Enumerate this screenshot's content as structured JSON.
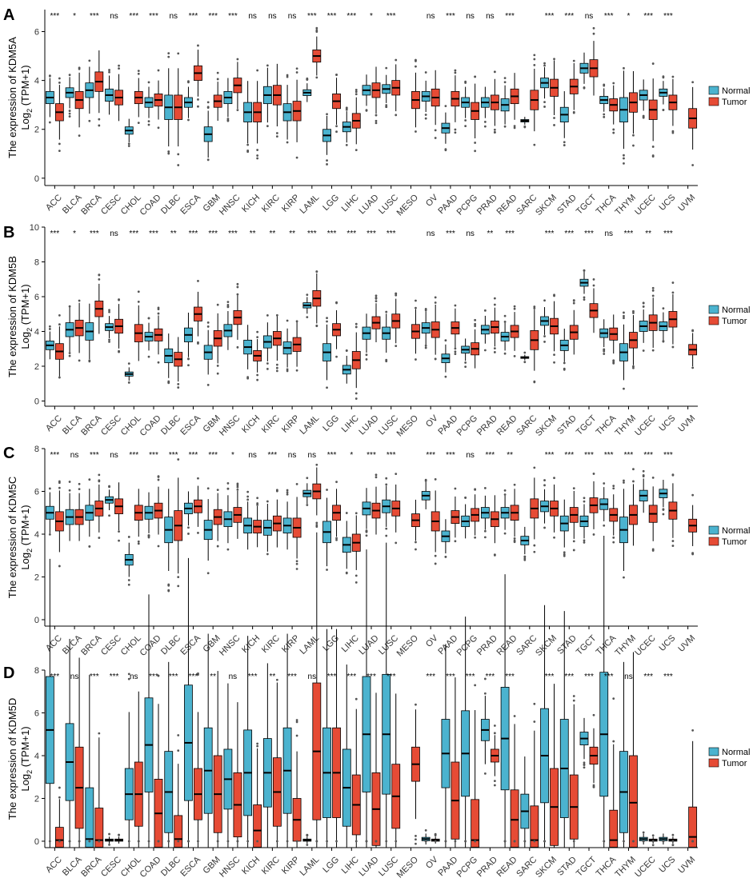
{
  "colors": {
    "normal": "#4bb3cf",
    "tumor": "#e64b35",
    "axis": "#000000",
    "outlier": "#555555"
  },
  "legend": {
    "normal": "Normal",
    "tumor": "Tumor"
  },
  "chart_data": [
    {
      "label": "A",
      "type": "box",
      "ylabel_line1": "The expression of KDM5A",
      "ylabel_line2": "Log",
      "ylabel_sub": "2",
      "ylabel_suffix": " (TPM+1)",
      "ylim": [
        -0.3,
        6.9
      ],
      "yticks": [
        0,
        2,
        4,
        6
      ],
      "categories": [
        "ACC",
        "BLCA",
        "BRCA",
        "CESC",
        "CHOL",
        "COAD",
        "DLBC",
        "ESCA",
        "GBM",
        "HNSC",
        "KICH",
        "KIRC",
        "KIRP",
        "LAML",
        "LGG",
        "LIHC",
        "LUAD",
        "LUSC",
        "MESO",
        "OV",
        "PAAD",
        "PCPG",
        "PRAD",
        "READ",
        "SARC",
        "SKCM",
        "STAD",
        "TGCT",
        "THCA",
        "THYM",
        "UCEC",
        "UCS",
        "UVM"
      ],
      "significance": [
        "***",
        "*",
        "***",
        "ns",
        "***",
        "***",
        "ns",
        "***",
        "***",
        "***",
        "ns",
        "ns",
        "ns",
        "***",
        "***",
        "***",
        "*",
        "***",
        "",
        "ns",
        "***",
        "ns",
        "ns",
        "***",
        "",
        "***",
        "***",
        "ns",
        "***",
        "*",
        "***",
        "***",
        ""
      ],
      "normal": [
        [
          3.3,
          0.25
        ],
        [
          3.5,
          0.2
        ],
        [
          3.6,
          0.3
        ],
        [
          3.4,
          0.25
        ],
        [
          1.95,
          0.15
        ],
        [
          3.1,
          0.2
        ],
        [
          2.9,
          0.5
        ],
        [
          3.1,
          0.2
        ],
        [
          1.8,
          0.3
        ],
        [
          3.3,
          0.25
        ],
        [
          2.7,
          0.4
        ],
        [
          3.4,
          0.35
        ],
        [
          2.7,
          0.35
        ],
        [
          3.5,
          0.12
        ],
        [
          1.75,
          0.25
        ],
        [
          2.1,
          0.2
        ],
        [
          3.6,
          0.2
        ],
        [
          3.65,
          0.18
        ],
        null,
        [
          3.35,
          0.2
        ],
        [
          2.05,
          0.2
        ],
        [
          3.1,
          0.2
        ],
        [
          3.1,
          0.2
        ],
        [
          3.0,
          0.25
        ],
        [
          2.35,
          0.05
        ],
        [
          3.9,
          0.2
        ],
        [
          2.6,
          0.3
        ],
        [
          4.5,
          0.2
        ],
        [
          3.2,
          0.15
        ],
        [
          2.8,
          0.5
        ],
        [
          3.4,
          0.2
        ],
        [
          3.5,
          0.15
        ],
        null
      ],
      "tumor": [
        [
          2.7,
          0.35
        ],
        [
          3.2,
          0.35
        ],
        [
          3.95,
          0.4
        ],
        [
          3.3,
          0.3
        ],
        [
          3.3,
          0.25
        ],
        [
          3.2,
          0.25
        ],
        [
          2.9,
          0.5
        ],
        [
          4.3,
          0.3
        ],
        [
          3.15,
          0.25
        ],
        [
          3.8,
          0.3
        ],
        [
          2.7,
          0.4
        ],
        [
          3.4,
          0.4
        ],
        [
          2.75,
          0.4
        ],
        [
          5.0,
          0.25
        ],
        [
          3.15,
          0.3
        ],
        [
          2.35,
          0.3
        ],
        [
          3.6,
          0.3
        ],
        [
          3.7,
          0.3
        ],
        [
          3.2,
          0.35
        ],
        [
          3.3,
          0.35
        ],
        [
          3.25,
          0.3
        ],
        [
          2.75,
          0.35
        ],
        [
          3.1,
          0.3
        ],
        [
          3.35,
          0.3
        ],
        [
          3.2,
          0.4
        ],
        [
          3.7,
          0.35
        ],
        [
          3.75,
          0.3
        ],
        [
          4.5,
          0.35
        ],
        [
          3.0,
          0.25
        ],
        [
          3.1,
          0.4
        ],
        [
          2.8,
          0.4
        ],
        [
          3.1,
          0.3
        ],
        [
          2.45,
          0.4
        ]
      ]
    },
    {
      "label": "B",
      "type": "box",
      "ylabel_line1": "The expression of KDM5B",
      "ylabel_line2": "Log",
      "ylabel_sub": "2",
      "ylabel_suffix": " (TPM+1)",
      "ylim": [
        -0.3,
        10.0
      ],
      "yticks": [
        0,
        2,
        4,
        6,
        8,
        10
      ],
      "categories": [
        "ACC",
        "BLCA",
        "BRCA",
        "CESC",
        "CHOL",
        "COAD",
        "DLBC",
        "ESCA",
        "GBM",
        "HNSC",
        "KICH",
        "KIRC",
        "KIRP",
        "LAML",
        "LGG",
        "LIHC",
        "LUAD",
        "LUSC",
        "MESO",
        "OV",
        "PAAD",
        "PCPG",
        "PRAD",
        "READ",
        "SARC",
        "SKCM",
        "STAD",
        "TGCT",
        "THCA",
        "THYM",
        "UCEC",
        "UCS",
        "UVM"
      ],
      "significance": [
        "***",
        "*",
        "***",
        "ns",
        "***",
        "***",
        "**",
        "***",
        "***",
        "***",
        "**",
        "**",
        "**",
        "***",
        "***",
        "***",
        "***",
        "***",
        "",
        "ns",
        "***",
        "ns",
        "**",
        "***",
        "",
        "***",
        "***",
        "***",
        "ns",
        "***",
        "**",
        "***",
        ""
      ],
      "normal": [
        [
          3.2,
          0.25
        ],
        [
          4.1,
          0.4
        ],
        [
          4.0,
          0.5
        ],
        [
          4.25,
          0.2
        ],
        [
          1.55,
          0.12
        ],
        [
          3.7,
          0.25
        ],
        [
          2.6,
          0.4
        ],
        [
          3.8,
          0.4
        ],
        [
          2.8,
          0.4
        ],
        [
          4.05,
          0.35
        ],
        [
          3.1,
          0.4
        ],
        [
          3.4,
          0.35
        ],
        [
          3.05,
          0.35
        ],
        [
          5.5,
          0.15
        ],
        [
          2.8,
          0.5
        ],
        [
          1.8,
          0.25
        ],
        [
          3.9,
          0.35
        ],
        [
          3.9,
          0.35
        ],
        null,
        [
          4.2,
          0.3
        ],
        [
          2.45,
          0.25
        ],
        [
          2.95,
          0.2
        ],
        [
          4.1,
          0.25
        ],
        [
          3.7,
          0.25
        ],
        [
          2.5,
          0.05
        ],
        [
          4.6,
          0.25
        ],
        [
          3.2,
          0.3
        ],
        [
          6.8,
          0.2
        ],
        [
          3.9,
          0.25
        ],
        [
          2.8,
          0.5
        ],
        [
          4.3,
          0.3
        ],
        [
          4.3,
          0.25
        ],
        null
      ],
      "tumor": [
        [
          2.85,
          0.45
        ],
        [
          4.2,
          0.45
        ],
        [
          5.3,
          0.45
        ],
        [
          4.3,
          0.4
        ],
        [
          3.9,
          0.5
        ],
        [
          3.8,
          0.35
        ],
        [
          2.4,
          0.4
        ],
        [
          5.0,
          0.4
        ],
        [
          3.6,
          0.45
        ],
        [
          4.8,
          0.4
        ],
        [
          2.6,
          0.3
        ],
        [
          3.6,
          0.4
        ],
        [
          3.25,
          0.4
        ],
        [
          5.9,
          0.45
        ],
        [
          4.1,
          0.35
        ],
        [
          2.35,
          0.5
        ],
        [
          4.5,
          0.35
        ],
        [
          4.6,
          0.4
        ],
        [
          4.0,
          0.4
        ],
        [
          4.1,
          0.45
        ],
        [
          4.2,
          0.35
        ],
        [
          3.0,
          0.35
        ],
        [
          4.25,
          0.35
        ],
        [
          4.0,
          0.35
        ],
        [
          3.5,
          0.55
        ],
        [
          4.3,
          0.45
        ],
        [
          3.95,
          0.4
        ],
        [
          5.2,
          0.4
        ],
        [
          3.85,
          0.35
        ],
        [
          3.5,
          0.45
        ],
        [
          4.5,
          0.45
        ],
        [
          4.7,
          0.45
        ],
        [
          2.95,
          0.3
        ]
      ]
    },
    {
      "label": "C",
      "type": "box",
      "ylabel_line1": "The expression of KDM5C",
      "ylabel_line2": "Log",
      "ylabel_sub": "2",
      "ylabel_suffix": " (TPM+1)",
      "ylim": [
        -0.3,
        8.0
      ],
      "yticks": [
        0,
        2,
        4,
        6,
        8
      ],
      "categories": [
        "ACC",
        "BLCA",
        "BRCA",
        "CESC",
        "CHOL",
        "COAD",
        "DLBC",
        "ESCA",
        "GBM",
        "HNSC",
        "KICH",
        "KIRC",
        "KIRP",
        "LAML",
        "LGG",
        "LIHC",
        "LUAD",
        "LUSC",
        "MESO",
        "OV",
        "PAAD",
        "PCPG",
        "PRAD",
        "READ",
        "SARC",
        "SKCM",
        "STAD",
        "TGCT",
        "THCA",
        "THYM",
        "UCEC",
        "UCS",
        "UVM"
      ],
      "significance": [
        "***",
        "ns",
        "***",
        "ns",
        "***",
        "***",
        "***",
        "***",
        "***",
        "*",
        "ns",
        "***",
        "ns",
        "ns",
        "***",
        "*",
        "***",
        "***",
        "",
        "***",
        "***",
        "ns",
        "***",
        "**",
        "",
        "***",
        "***",
        "***",
        "***",
        "***",
        "***",
        "***",
        ""
      ],
      "normal": [
        [
          5.0,
          0.3
        ],
        [
          4.8,
          0.35
        ],
        [
          5.0,
          0.35
        ],
        [
          5.6,
          0.15
        ],
        [
          2.8,
          0.25
        ],
        [
          5.0,
          0.3
        ],
        [
          4.2,
          0.6
        ],
        [
          5.2,
          0.25
        ],
        [
          4.2,
          0.45
        ],
        [
          4.7,
          0.35
        ],
        [
          4.4,
          0.35
        ],
        [
          4.3,
          0.35
        ],
        [
          4.4,
          0.35
        ],
        [
          5.9,
          0.15
        ],
        [
          4.1,
          0.5
        ],
        [
          3.5,
          0.35
        ],
        [
          5.2,
          0.3
        ],
        [
          5.3,
          0.3
        ],
        null,
        [
          5.8,
          0.2
        ],
        [
          3.9,
          0.25
        ],
        [
          4.6,
          0.25
        ],
        [
          5.0,
          0.25
        ],
        [
          5.0,
          0.25
        ],
        [
          3.7,
          0.2
        ],
        [
          5.3,
          0.25
        ],
        [
          4.5,
          0.35
        ],
        [
          4.6,
          0.25
        ],
        [
          5.4,
          0.25
        ],
        [
          4.2,
          0.6
        ],
        [
          5.8,
          0.25
        ],
        [
          5.9,
          0.2
        ],
        null
      ],
      "tumor": [
        [
          4.6,
          0.45
        ],
        [
          4.8,
          0.35
        ],
        [
          5.2,
          0.35
        ],
        [
          5.3,
          0.35
        ],
        [
          5.0,
          0.35
        ],
        [
          5.1,
          0.35
        ],
        [
          4.4,
          0.7
        ],
        [
          5.3,
          0.3
        ],
        [
          4.8,
          0.35
        ],
        [
          4.9,
          0.35
        ],
        [
          4.35,
          0.3
        ],
        [
          4.5,
          0.35
        ],
        [
          4.3,
          0.45
        ],
        [
          6.0,
          0.35
        ],
        [
          5.0,
          0.35
        ],
        [
          3.6,
          0.4
        ],
        [
          5.1,
          0.35
        ],
        [
          5.2,
          0.35
        ],
        [
          4.65,
          0.3
        ],
        [
          4.6,
          0.45
        ],
        [
          4.8,
          0.3
        ],
        [
          4.9,
          0.3
        ],
        [
          4.7,
          0.35
        ],
        [
          5.0,
          0.35
        ],
        [
          5.2,
          0.45
        ],
        [
          5.2,
          0.35
        ],
        [
          4.9,
          0.35
        ],
        [
          5.35,
          0.35
        ],
        [
          4.9,
          0.3
        ],
        [
          4.9,
          0.45
        ],
        [
          4.95,
          0.4
        ],
        [
          5.1,
          0.4
        ],
        [
          4.4,
          0.3
        ]
      ]
    },
    {
      "label": "D",
      "type": "box",
      "ylabel_line1": "The expression of KDM5D",
      "ylabel_line2": "Log",
      "ylabel_sub": "2",
      "ylabel_suffix": " (TPM+1)",
      "ylim": [
        -0.3,
        8.0
      ],
      "yticks": [
        0,
        2,
        4,
        6,
        8
      ],
      "categories": [
        "ACC",
        "BLCA",
        "BRCA",
        "CESC",
        "CHOL",
        "COAD",
        "DLBC",
        "ESCA",
        "GBM",
        "HNSC",
        "KICH",
        "KIRC",
        "KIRP",
        "LAML",
        "LGG",
        "LIHC",
        "LUAD",
        "LUSC",
        "MESO",
        "OV",
        "PAAD",
        "PCPG",
        "PRAD",
        "READ",
        "SARC",
        "SKCM",
        "STAD",
        "TGCT",
        "THCA",
        "THYM",
        "UCEC",
        "UCS",
        "UVM"
      ],
      "significance": [
        "***",
        "ns",
        "***",
        "***",
        "ns",
        "***",
        "***",
        "***",
        "**",
        "ns",
        "***",
        "**",
        "***",
        "ns",
        "***",
        "***",
        "***",
        "***",
        "",
        "***",
        "***",
        "***",
        "***",
        "***",
        "",
        "***",
        "***",
        "***",
        "***",
        "ns",
        "***",
        "***",
        ""
      ],
      "normal": [
        [
          5.2,
          2.5
        ],
        [
          3.7,
          1.8
        ],
        [
          0.1,
          2.4
        ],
        [
          0.05,
          0.05
        ],
        [
          2.2,
          1.2
        ],
        [
          4.5,
          2.2
        ],
        [
          2.3,
          1.9
        ],
        [
          4.6,
          2.7
        ],
        [
          3.3,
          2.0
        ],
        [
          2.9,
          1.4
        ],
        [
          3.2,
          2.0
        ],
        [
          3.2,
          1.6
        ],
        [
          3.3,
          2.0
        ],
        [
          0.05,
          0.05
        ],
        [
          3.2,
          2.1
        ],
        [
          2.5,
          1.8
        ],
        [
          5.0,
          2.7
        ],
        [
          5.0,
          2.8
        ],
        null,
        [
          0.1,
          0.08
        ],
        [
          4.1,
          1.6
        ],
        [
          4.1,
          2.0
        ],
        [
          5.2,
          0.5
        ],
        [
          4.8,
          2.4
        ],
        [
          1.4,
          0.8
        ],
        [
          4.0,
          2.2
        ],
        [
          3.4,
          2.3
        ],
        [
          4.8,
          0.3
        ],
        [
          5.0,
          2.9
        ],
        [
          2.3,
          1.9
        ],
        [
          0.1,
          0.08
        ],
        [
          0.1,
          0.08
        ],
        null
      ],
      "tumor": [
        [
          0.05,
          0.6
        ],
        [
          2.5,
          1.9
        ],
        [
          0.05,
          1.5
        ],
        [
          0.05,
          0.05
        ],
        [
          2.2,
          1.5
        ],
        [
          1.3,
          1.6
        ],
        [
          0.1,
          1.1
        ],
        [
          2.2,
          1.2
        ],
        [
          2.2,
          1.8
        ],
        [
          1.7,
          1.5
        ],
        [
          0.5,
          1.2
        ],
        [
          2.3,
          1.6
        ],
        [
          1.0,
          1.0
        ],
        [
          4.2,
          3.2
        ],
        [
          3.2,
          2.1
        ],
        [
          1.7,
          1.4
        ],
        [
          1.5,
          1.7
        ],
        [
          2.1,
          1.5
        ],
        [
          3.6,
          0.8
        ],
        [
          0.05,
          0.05
        ],
        [
          1.9,
          1.8
        ],
        [
          0.05,
          1.9
        ],
        [
          4.0,
          0.3
        ],
        [
          1.0,
          1.4
        ],
        [
          0.05,
          1.6
        ],
        [
          1.6,
          1.8
        ],
        [
          1.6,
          1.5
        ],
        [
          4.0,
          0.4
        ],
        [
          0.05,
          1.4
        ],
        [
          1.8,
          2.2
        ],
        [
          0.05,
          0.05
        ],
        [
          0.05,
          0.05
        ],
        [
          0.2,
          1.4
        ]
      ]
    }
  ]
}
